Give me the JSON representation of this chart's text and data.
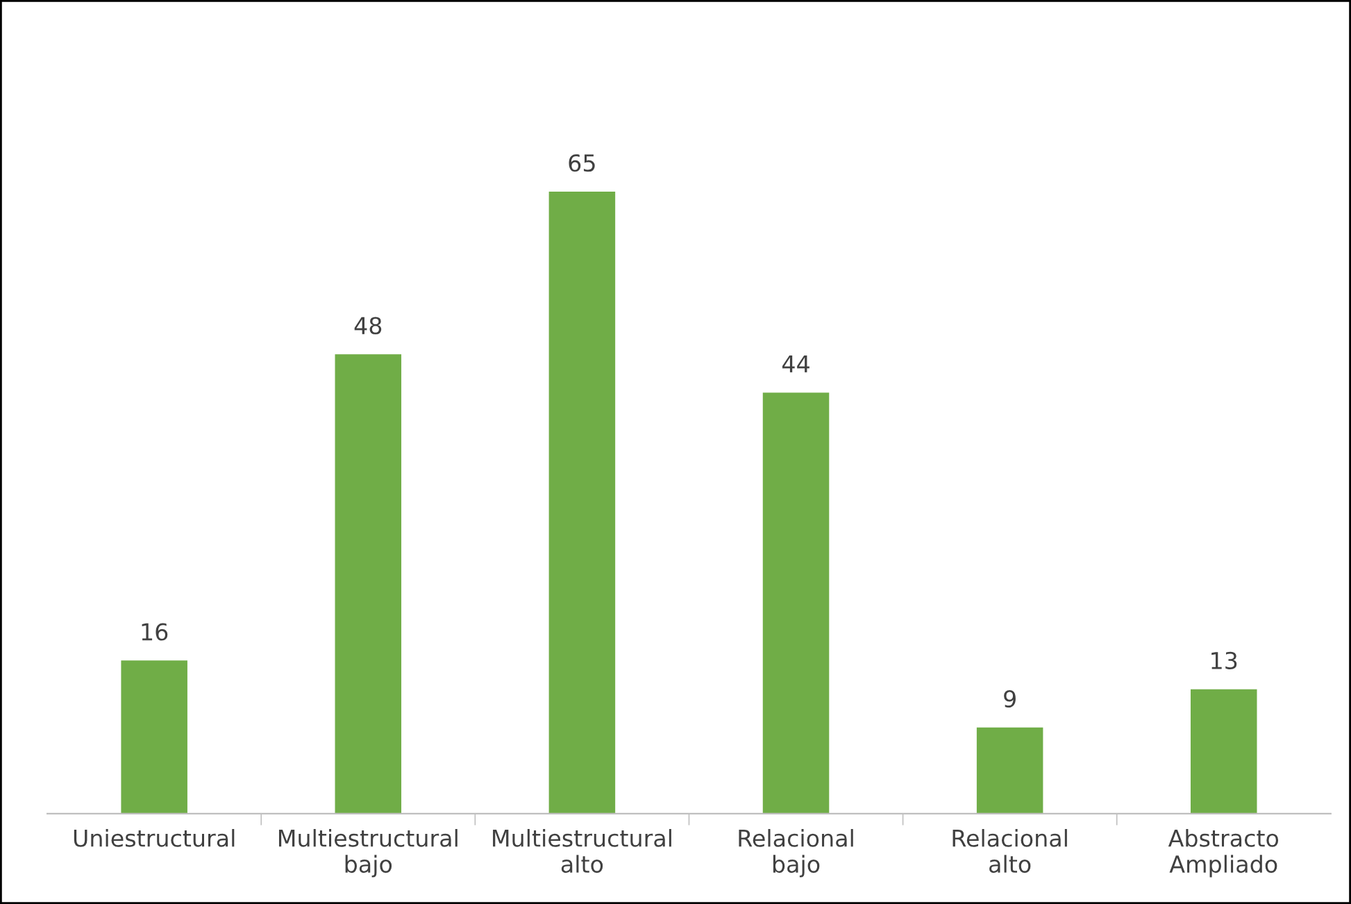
{
  "chart_data": {
    "type": "bar",
    "categories": [
      "Uniestructural",
      "Multiestructural\nbajo",
      "Multiestructural\nalto",
      "Relacional\nbajo",
      "Relacional\nalto",
      "Abstracto\nAmpliado"
    ],
    "values": [
      16,
      48,
      65,
      44,
      9,
      13
    ],
    "color": "#70ad47",
    "data_labels": true,
    "grid": false,
    "legend": false
  }
}
